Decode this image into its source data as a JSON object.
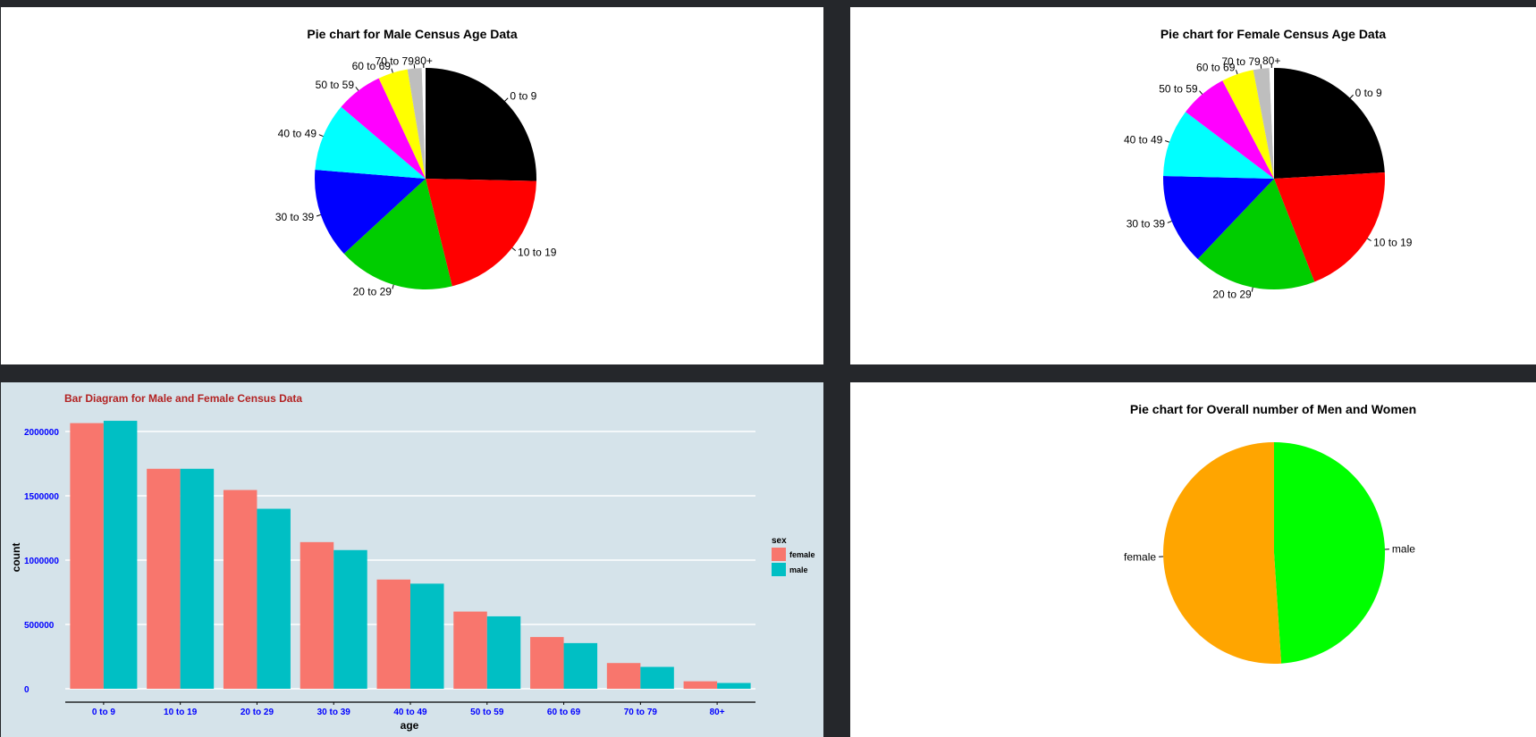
{
  "chart_data": [
    {
      "type": "pie",
      "title": "Pie chart for Male Census Age Data",
      "categories": [
        "0 to 9",
        "10 to 19",
        "20 to 29",
        "30 to 39",
        "40 to 49",
        "50 to 59",
        "60 to 69",
        "70 to 79",
        "80+"
      ],
      "values": [
        2083000,
        1710000,
        1399000,
        1078000,
        817000,
        563000,
        355000,
        170000,
        45000
      ],
      "colors": [
        "#000000",
        "#ff0000",
        "#00cd00",
        "#0000ff",
        "#00ffff",
        "#ff00ff",
        "#ffff00",
        "#bebebe",
        "#ffffff"
      ],
      "label_order": [
        "80+",
        "70 to 79",
        "60 to 69",
        "50 to 59",
        "40 to 49",
        "30 to 39",
        "20 to 29",
        "10 to 19",
        "0 to 9"
      ]
    },
    {
      "type": "pie",
      "title": "Pie chart for Female Census Age Data",
      "categories": [
        "0 to 9",
        "10 to 19",
        "20 to 29",
        "30 to 39",
        "40 to 49",
        "50 to 59",
        "60 to 69",
        "70 to 79",
        "80+"
      ],
      "values": [
        2065000,
        1710000,
        1545000,
        1140000,
        849000,
        600000,
        402000,
        200000,
        58000
      ],
      "colors": [
        "#000000",
        "#ff0000",
        "#00cd00",
        "#0000ff",
        "#00ffff",
        "#ff00ff",
        "#ffff00",
        "#bebebe",
        "#ffffff"
      ]
    },
    {
      "type": "bar",
      "title": "Bar Diagram for Male and Female Census Data",
      "categories": [
        "0 to 9",
        "10 to 19",
        "20 to 29",
        "30 to 39",
        "40 to 49",
        "50 to 59",
        "60 to 69",
        "70 to 79",
        "80+"
      ],
      "series": [
        {
          "name": "female",
          "color": "#f8766d",
          "values": [
            2065000,
            1710000,
            1545000,
            1140000,
            849000,
            600000,
            402000,
            200000,
            58000
          ]
        },
        {
          "name": "male",
          "color": "#00bfc4",
          "values": [
            2083000,
            1710000,
            1399000,
            1078000,
            817000,
            563000,
            355000,
            170000,
            45000
          ]
        }
      ],
      "xlabel": "age",
      "ylabel": "count",
      "yticks": [
        "0",
        "500000",
        "1000000",
        "1500000",
        "2000000"
      ],
      "ylim": [
        0,
        2150000
      ],
      "legend_title": "sex",
      "legend_position": "right",
      "title_color": "#b22222",
      "tick_color": "#0000ff",
      "background": "#d5e3ea",
      "grid": true
    },
    {
      "type": "pie",
      "title": "Pie chart for Overall number of Men and Women",
      "categories": [
        "male",
        "female"
      ],
      "values": [
        8220000,
        8569000
      ],
      "colors": [
        "#00ff00",
        "#ffa500"
      ]
    }
  ]
}
